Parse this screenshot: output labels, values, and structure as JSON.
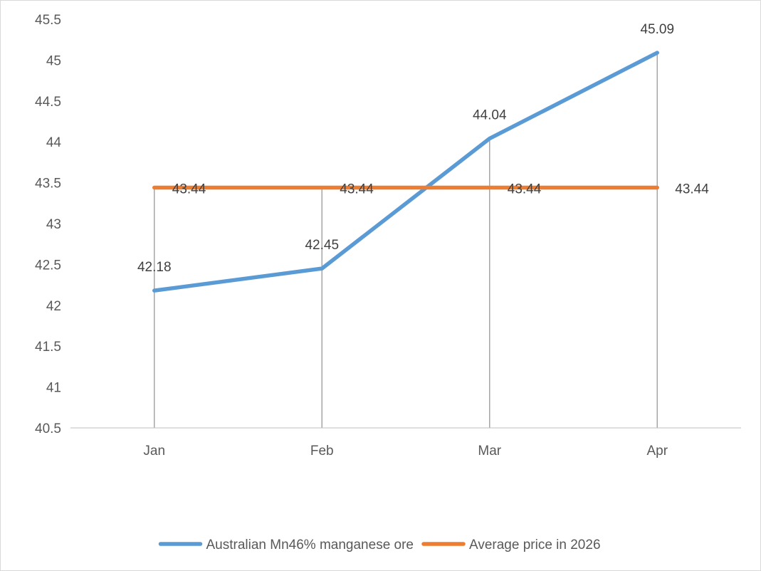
{
  "chart_data": {
    "type": "line",
    "categories": [
      "Jan",
      "Feb",
      "Mar",
      "Apr"
    ],
    "series": [
      {
        "name": "Australian Mn46% manganese ore",
        "values": [
          42.18,
          42.45,
          44.04,
          45.09
        ],
        "labels": [
          "42.18",
          "42.45",
          "44.04",
          "45.09"
        ],
        "color": "#5b9bd5"
      },
      {
        "name": "Average price in 2026",
        "values": [
          43.44,
          43.44,
          43.44,
          43.44
        ],
        "labels": [
          "43.44",
          "43.44",
          "43.44",
          "43.44"
        ],
        "color": "#ed7d31"
      }
    ],
    "ylim": [
      40.5,
      45.5
    ],
    "yticks": [
      "40.5",
      "41",
      "41.5",
      "42",
      "42.5",
      "43",
      "43.5",
      "44",
      "44.5",
      "45",
      "45.5"
    ],
    "drop_lines": true,
    "grid": false,
    "legend_position": "bottom",
    "title": "",
    "xlabel": "",
    "ylabel": ""
  }
}
